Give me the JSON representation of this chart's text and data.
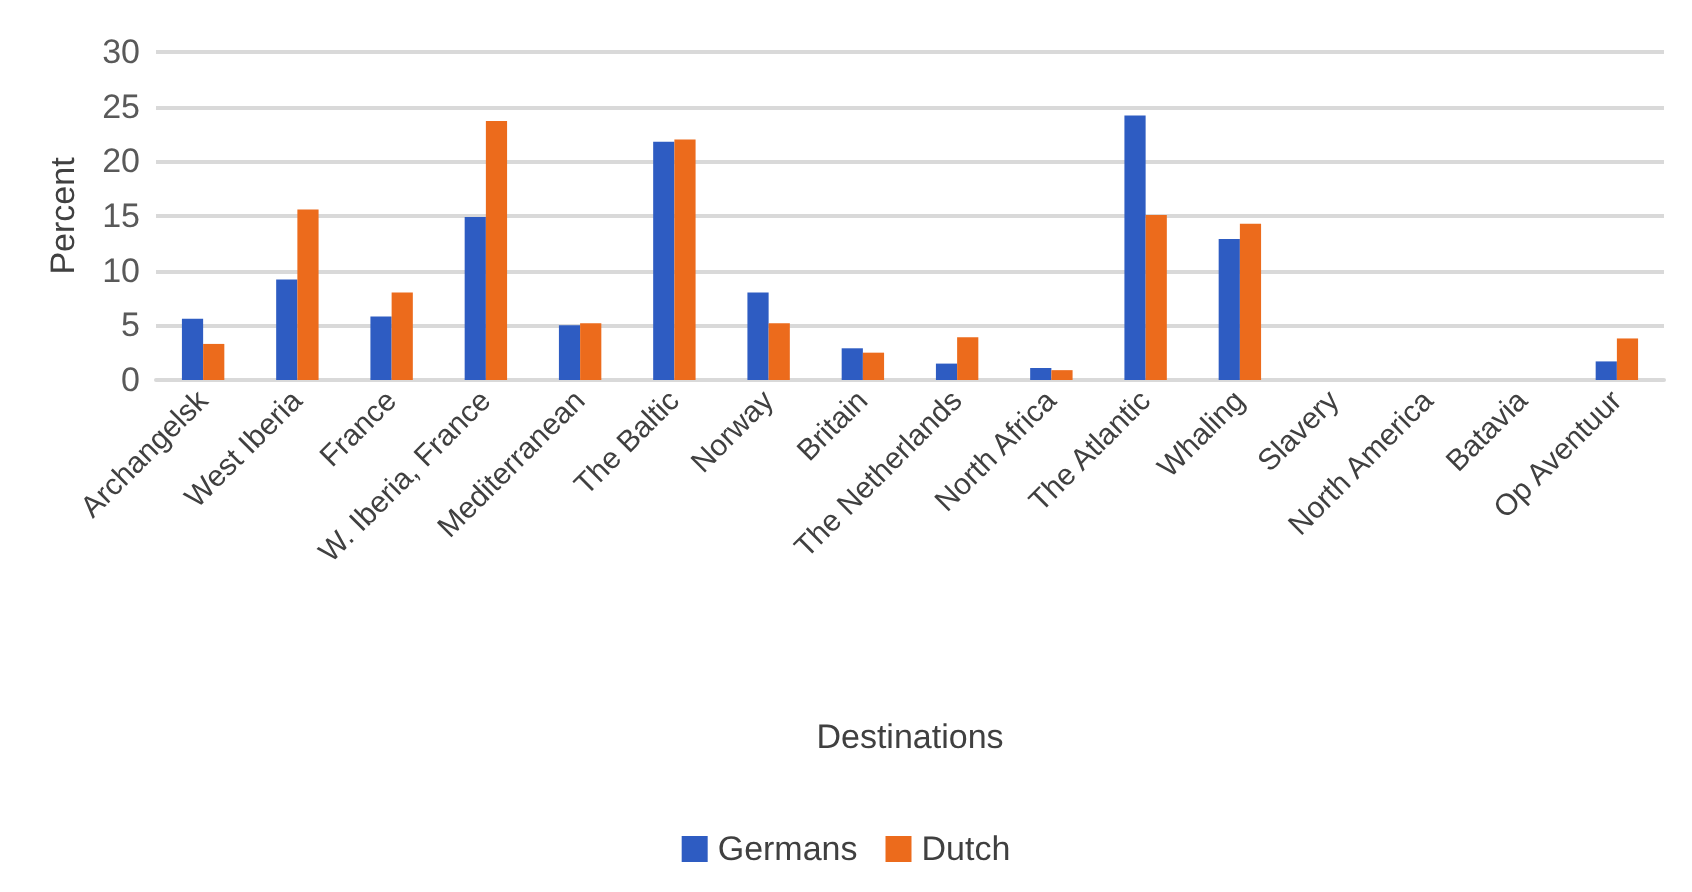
{
  "chart_data": {
    "type": "bar",
    "xlabel": "Destinations",
    "ylabel": "Percent",
    "categories": [
      "Archangelsk",
      "West Iberia",
      "France",
      "W. Iberia, France",
      "Mediterranean",
      "The Baltic",
      "Norway",
      "Britain",
      "The Netherlands",
      "North Africa",
      "The Atlantic",
      "Whaling",
      "Slavery",
      "North America",
      "Batavia",
      "Op Aventuur"
    ],
    "series": [
      {
        "name": "Germans",
        "color": "#2e5cc2",
        "values": [
          5.6,
          9.2,
          5.8,
          14.9,
          5.0,
          21.8,
          8.0,
          2.9,
          1.5,
          1.1,
          24.2,
          12.9,
          0,
          0,
          0,
          1.7
        ]
      },
      {
        "name": "Dutch",
        "color": "#ec6b1c",
        "values": [
          3.3,
          15.6,
          8.0,
          23.7,
          5.2,
          22.0,
          5.2,
          2.5,
          3.9,
          0.9,
          15.1,
          14.3,
          0,
          0,
          0,
          3.8
        ]
      }
    ],
    "ylim": [
      0,
      30
    ],
    "yticks": [
      0,
      5,
      10,
      15,
      20,
      25,
      30
    ],
    "grid": "y",
    "legend": "bottom"
  }
}
